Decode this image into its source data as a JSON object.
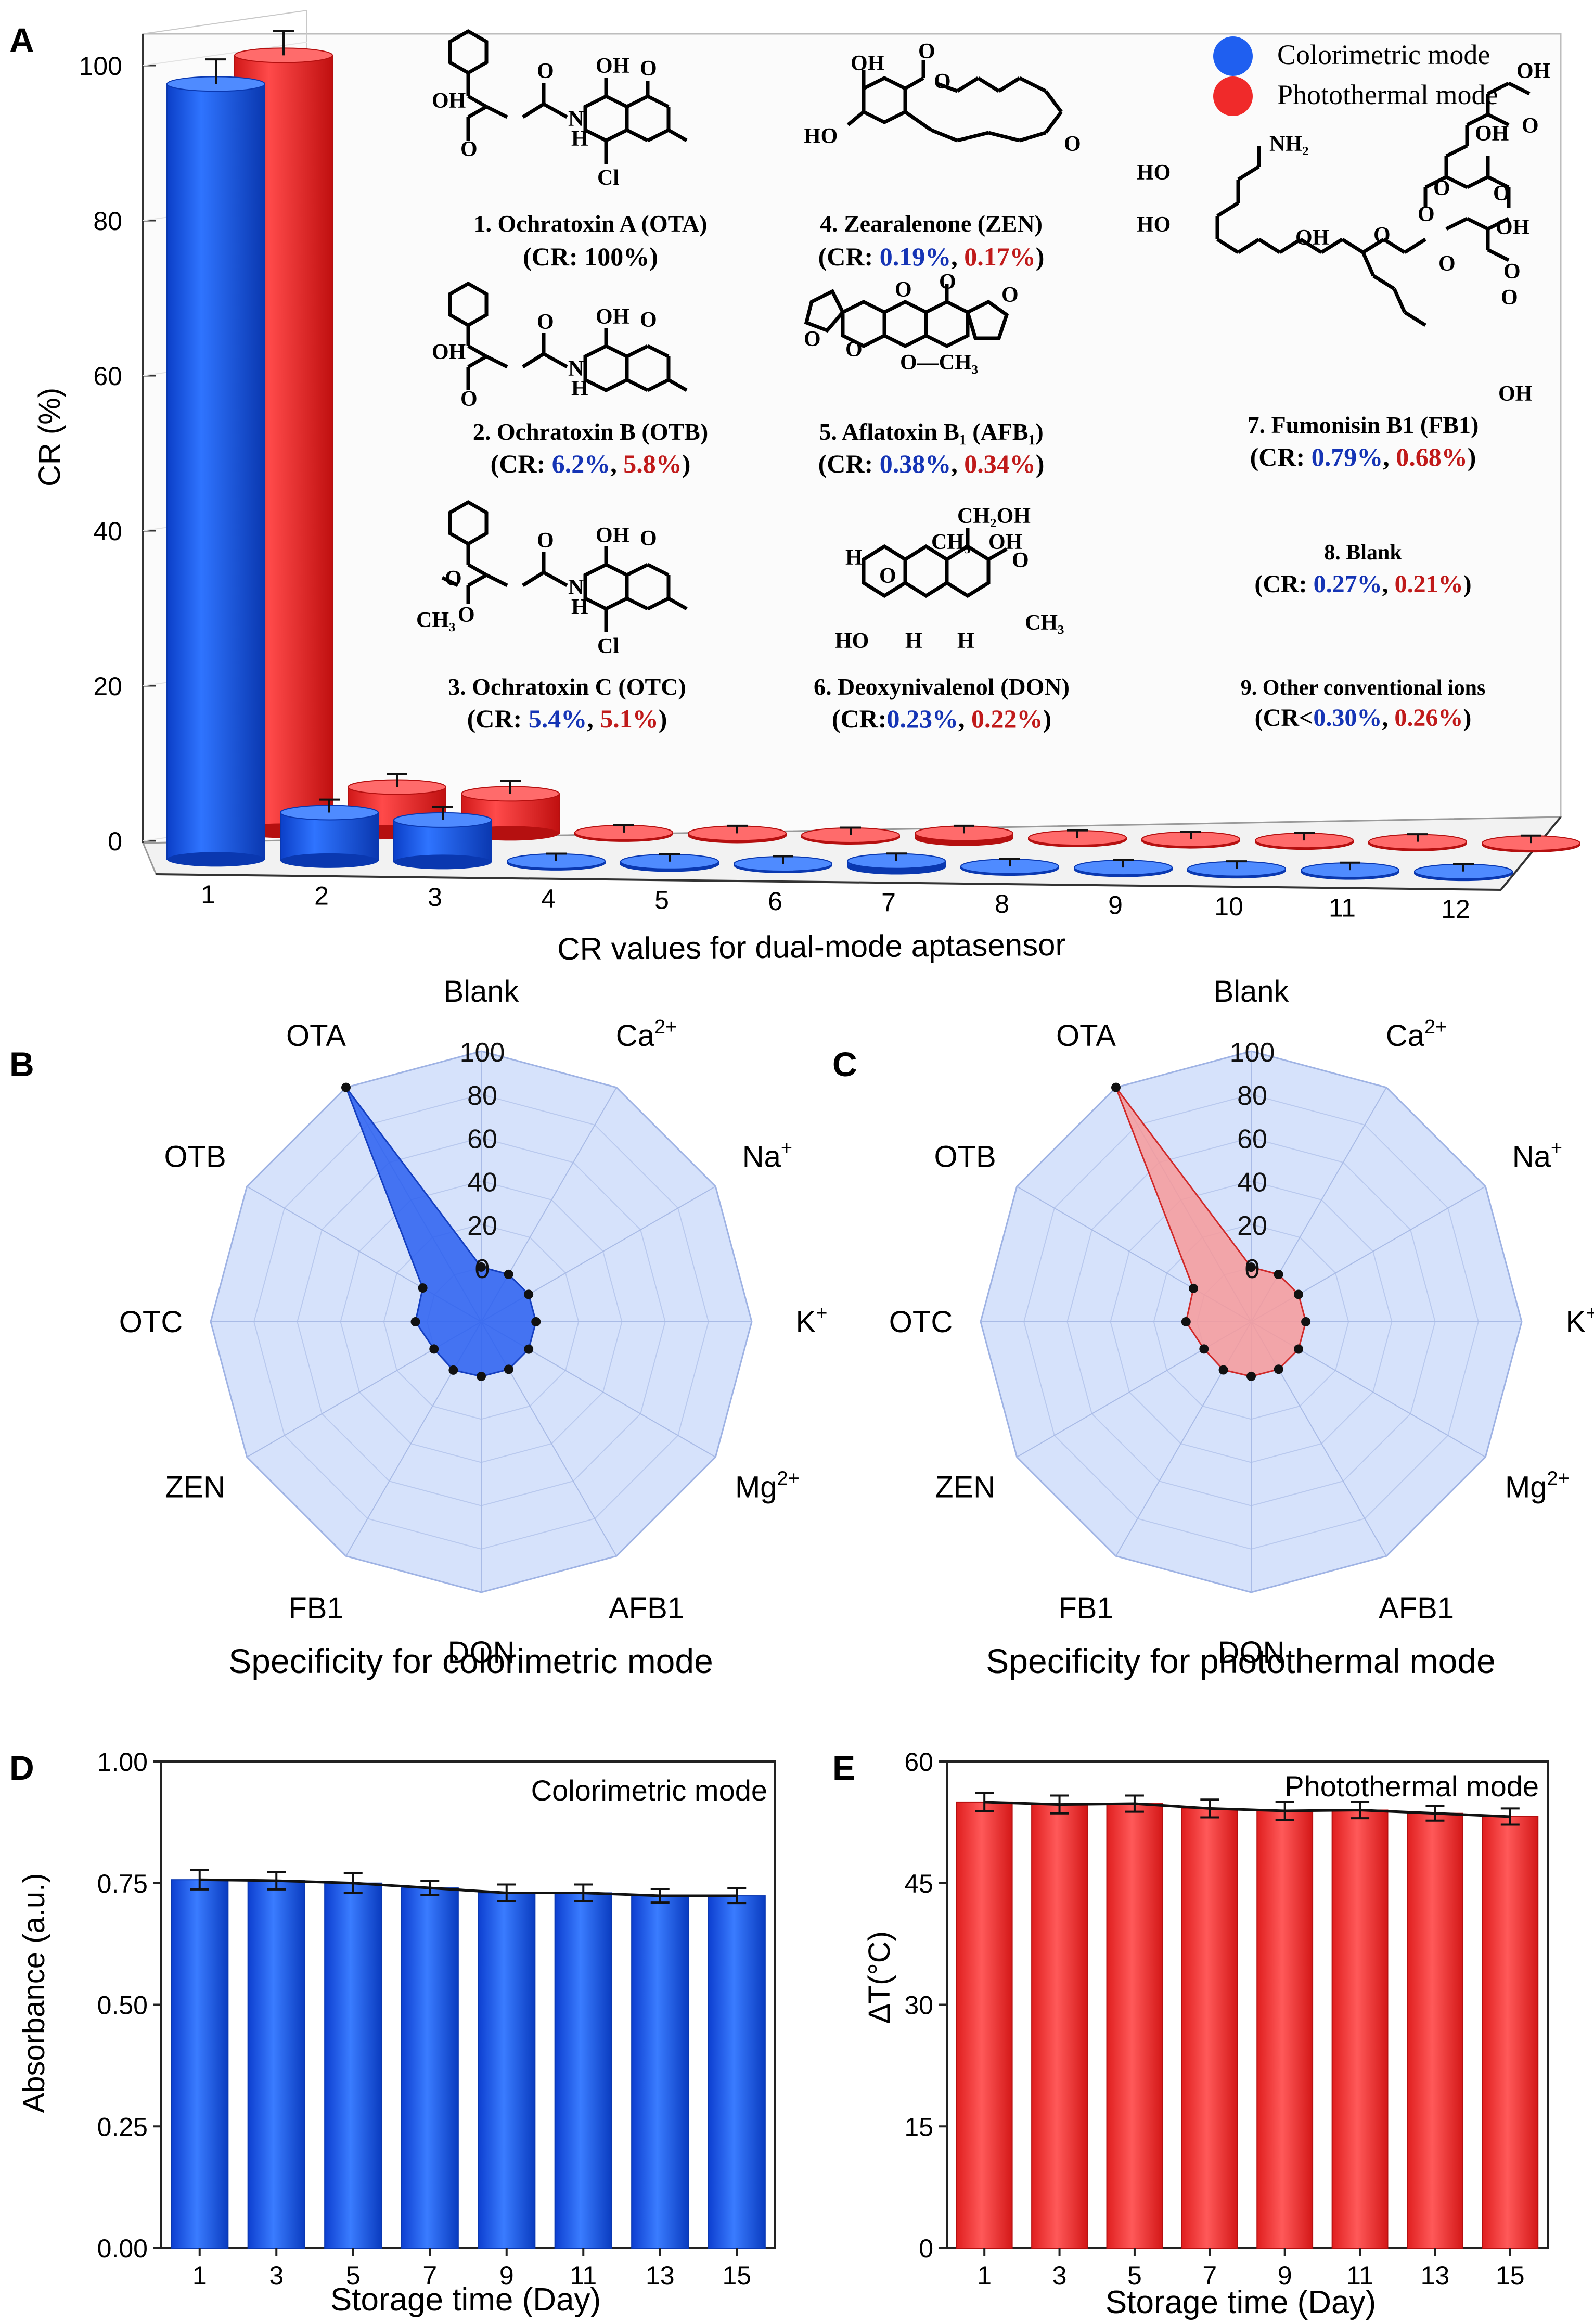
{
  "colors": {
    "blue": "#1f5ff0",
    "blue_dark": "#0a38b0",
    "red": "#f02a2a",
    "red_dark": "#b51010",
    "radar_bg": "#d6e2fb",
    "text_blue": "#1534b5",
    "text_red": "#c01a1a"
  },
  "panel_labels": {
    "a": "A",
    "b": "B",
    "c": "C",
    "d": "D",
    "e": "E"
  },
  "chart_data": [
    {
      "panel": "A",
      "type": "bar",
      "title": "",
      "xlabel": "CR values for dual-mode aptasensor",
      "ylabel": "CR (%)",
      "ylim": [
        0,
        105
      ],
      "yticks": [
        "0",
        "20",
        "40",
        "60",
        "80",
        "100"
      ],
      "categories": [
        "1",
        "2",
        "3",
        "4",
        "5",
        "6",
        "7",
        "8",
        "9",
        "10",
        "11",
        "12"
      ],
      "series": [
        {
          "name": "Colorimetric mode",
          "values": [
            100,
            6.2,
            5.4,
            0.19,
            0.38,
            0.23,
            0.79,
            0.27,
            0.3,
            0.3,
            0.3,
            0.3
          ],
          "error": [
            2.5,
            1.0,
            1.0,
            0.3,
            0.3,
            0.3,
            0.3,
            0.3,
            0.3,
            0.3,
            0.3,
            0.3
          ]
        },
        {
          "name": "Photothermal mode",
          "values": [
            100,
            5.8,
            5.1,
            0.17,
            0.34,
            0.22,
            0.68,
            0.21,
            0.26,
            0.26,
            0.26,
            0.26
          ],
          "error": [
            2.5,
            1.0,
            1.0,
            0.3,
            0.3,
            0.3,
            0.3,
            0.3,
            0.3,
            0.3,
            0.3,
            0.3
          ]
        }
      ],
      "legend": [
        "Colorimetric mode",
        "Photothermal mode"
      ],
      "annotations": [
        {
          "name": "1. Ochratoxin A (OTA)",
          "cr_prefix": "(CR: ",
          "cr_single": "100%",
          "cr_suffix": ")"
        },
        {
          "name": "2. Ochratoxin B (OTB)",
          "cr_prefix": "(CR: ",
          "cr_blue": "6.2%",
          "cr_sep": ", ",
          "cr_red": "5.8%",
          "cr_suffix": ")"
        },
        {
          "name": "3. Ochratoxin C (OTC)",
          "cr_prefix": "(CR: ",
          "cr_blue": "5.4%",
          "cr_sep": ", ",
          "cr_red": "5.1%",
          "cr_suffix": ")"
        },
        {
          "name": "4. Zearalenone (ZEN)",
          "cr_prefix": "(CR: ",
          "cr_blue": "0.19%",
          "cr_sep": ", ",
          "cr_red": "0.17%",
          "cr_suffix": ")"
        },
        {
          "name": "5. Aflatoxin B₁ (AFB₁)",
          "cr_prefix": "(CR: ",
          "cr_blue": "0.38%",
          "cr_sep": ", ",
          "cr_red": "0.34%",
          "cr_suffix": ")"
        },
        {
          "name": "6. Deoxynivalenol (DON)",
          "cr_prefix": "(CR:",
          "cr_blue": "0.23%",
          "cr_sep": ", ",
          "cr_red": "0.22%",
          "cr_suffix": ")"
        },
        {
          "name": "7. Fumonisin B1 (FB1)",
          "cr_prefix": "(CR: ",
          "cr_blue": "0.79%",
          "cr_sep": ", ",
          "cr_red": "0.68%",
          "cr_suffix": ")"
        },
        {
          "name": "8. Blank",
          "cr_prefix": "(CR: ",
          "cr_blue": "0.27%",
          "cr_sep": ", ",
          "cr_red": "0.21%",
          "cr_suffix": ")"
        },
        {
          "name": "9. Other conventional ions",
          "cr_prefix": "(CR<",
          "cr_blue": "0.30%",
          "cr_sep": ", ",
          "cr_red": "0.26%",
          "cr_suffix": ")"
        }
      ],
      "structure_atoms": {
        "ota": [
          "OH",
          "O",
          "O",
          "OH",
          "O",
          "N",
          "H",
          "Cl"
        ],
        "otb": [
          "OH",
          "O",
          "O",
          "OH",
          "O",
          "N",
          "H"
        ],
        "otc": [
          "O",
          "O",
          "O",
          "OH",
          "O",
          "N",
          "H",
          "CH₃",
          "Cl"
        ],
        "zen": [
          "OH",
          "O",
          "O",
          "HO",
          "O"
        ],
        "afb1": [
          "O",
          "O",
          "O",
          "O",
          "O",
          "O—CH₃"
        ],
        "don": [
          "CH₂OH",
          "H",
          "CH₃",
          "OH",
          "O",
          "O",
          "HO",
          "H",
          "H",
          "CH₃"
        ],
        "fb1": [
          "NH₂",
          "HO",
          "HO",
          "OH",
          "O",
          "O",
          "O",
          "OH",
          "O",
          "O",
          "OH",
          "O",
          "OH",
          "O",
          "O",
          "OH"
        ]
      }
    },
    {
      "panel": "B",
      "type": "radar",
      "title": "Specificity for colorimetric mode",
      "axes": [
        "Blank",
        "Ca2+",
        "Na+",
        "K+",
        "Mg2+",
        "AFB1",
        "DON",
        "FB1",
        "ZEN",
        "OTC",
        "OTB",
        "OTA"
      ],
      "axis_labels": [
        {
          "base": "Blank"
        },
        {
          "base": "Ca",
          "sup": "2+"
        },
        {
          "base": "Na",
          "sup": "+"
        },
        {
          "base": "K",
          "sup": "+"
        },
        {
          "base": "Mg",
          "sup": "2+"
        },
        {
          "base": "AFB1"
        },
        {
          "base": "DON"
        },
        {
          "base": "FB1"
        },
        {
          "base": "ZEN"
        },
        {
          "base": "OTC"
        },
        {
          "base": "OTB"
        },
        {
          "base": "OTA"
        }
      ],
      "radial_ticks": [
        "0",
        "20",
        "40",
        "60",
        "80",
        "100"
      ],
      "rlim": [
        -25,
        100
      ],
      "values": [
        0.27,
        0.3,
        0.3,
        0.3,
        0.3,
        0.38,
        0.23,
        0.79,
        0.19,
        5.4,
        6.2,
        100
      ]
    },
    {
      "panel": "C",
      "type": "radar",
      "title": "Specificity for photothermal mode",
      "axes": [
        "Blank",
        "Ca2+",
        "Na+",
        "K+",
        "Mg2+",
        "AFB1",
        "DON",
        "FB1",
        "ZEN",
        "OTC",
        "OTB",
        "OTA"
      ],
      "axis_labels": [
        {
          "base": "Blank"
        },
        {
          "base": "Ca",
          "sup": "2+"
        },
        {
          "base": "Na",
          "sup": "+"
        },
        {
          "base": "K",
          "sup": "+"
        },
        {
          "base": "Mg",
          "sup": "2+"
        },
        {
          "base": "AFB1"
        },
        {
          "base": "DON"
        },
        {
          "base": "FB1"
        },
        {
          "base": "ZEN"
        },
        {
          "base": "OTC"
        },
        {
          "base": "OTB"
        },
        {
          "base": "OTA"
        }
      ],
      "radial_ticks": [
        "0",
        "20",
        "40",
        "60",
        "80",
        "100"
      ],
      "rlim": [
        -25,
        100
      ],
      "values": [
        0.21,
        0.26,
        0.26,
        0.26,
        0.26,
        0.34,
        0.22,
        0.68,
        0.17,
        5.1,
        5.8,
        100
      ]
    },
    {
      "panel": "D",
      "type": "bar",
      "title": "Colorimetric mode",
      "xlabel": "Storage time (Day)",
      "ylabel": "Absorbance (a.u.)",
      "ylim": [
        0,
        1.0
      ],
      "yticks": [
        "0.00",
        "0.25",
        "0.50",
        "0.75",
        "1.00"
      ],
      "categories": [
        "1",
        "3",
        "5",
        "7",
        "9",
        "11",
        "13",
        "15"
      ],
      "values": [
        0.757,
        0.755,
        0.75,
        0.74,
        0.73,
        0.73,
        0.724,
        0.724
      ],
      "errors": [
        0.02,
        0.018,
        0.02,
        0.014,
        0.017,
        0.017,
        0.014,
        0.015
      ]
    },
    {
      "panel": "E",
      "type": "bar",
      "title": "Photothermal mode",
      "xlabel": "Storage time (Day)",
      "ylabel": "ΔT(°C)",
      "ylim": [
        0,
        60
      ],
      "yticks": [
        "0",
        "15",
        "30",
        "45",
        "60"
      ],
      "categories": [
        "1",
        "3",
        "5",
        "7",
        "9",
        "11",
        "13",
        "15"
      ],
      "values": [
        55.0,
        54.7,
        54.8,
        54.2,
        53.9,
        54.0,
        53.6,
        53.2
      ],
      "errors": [
        1.1,
        1.1,
        1.0,
        1.1,
        1.1,
        1.0,
        0.9,
        1.0
      ]
    }
  ]
}
